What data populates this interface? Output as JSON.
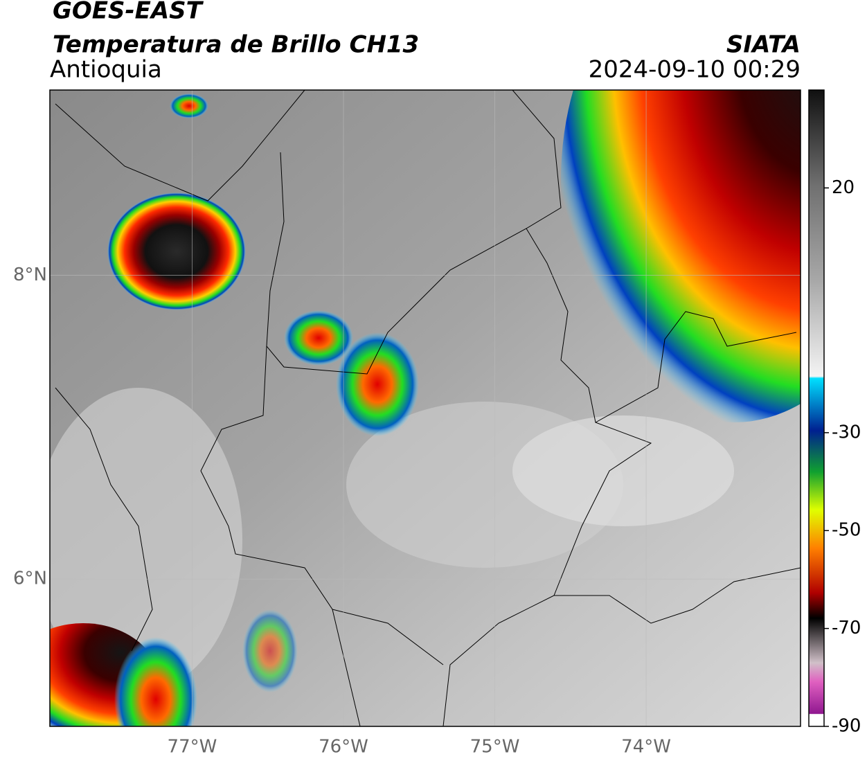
{
  "header": {
    "title": "GOES-EAST",
    "subtitle": "Temperatura de Brillo CH13",
    "region": "Antioquia",
    "source": "SIATA",
    "timestamp": "2024-09-10 00:29"
  },
  "map": {
    "xlim": [
      -77.94,
      -72.98
    ],
    "ylim": [
      5.03,
      9.22
    ],
    "xticks": [
      {
        "value": -77,
        "label": "77°W"
      },
      {
        "value": -76,
        "label": "76°W"
      },
      {
        "value": -75,
        "label": "75°W"
      },
      {
        "value": -74,
        "label": "74°W"
      }
    ],
    "yticks": [
      {
        "value": 8,
        "label": "8°N"
      },
      {
        "value": 6,
        "label": "6°N"
      }
    ]
  },
  "colorbar": {
    "lim": [
      -90,
      40
    ],
    "ticks": [
      20,
      -30,
      -50,
      -70,
      -90
    ]
  }
}
